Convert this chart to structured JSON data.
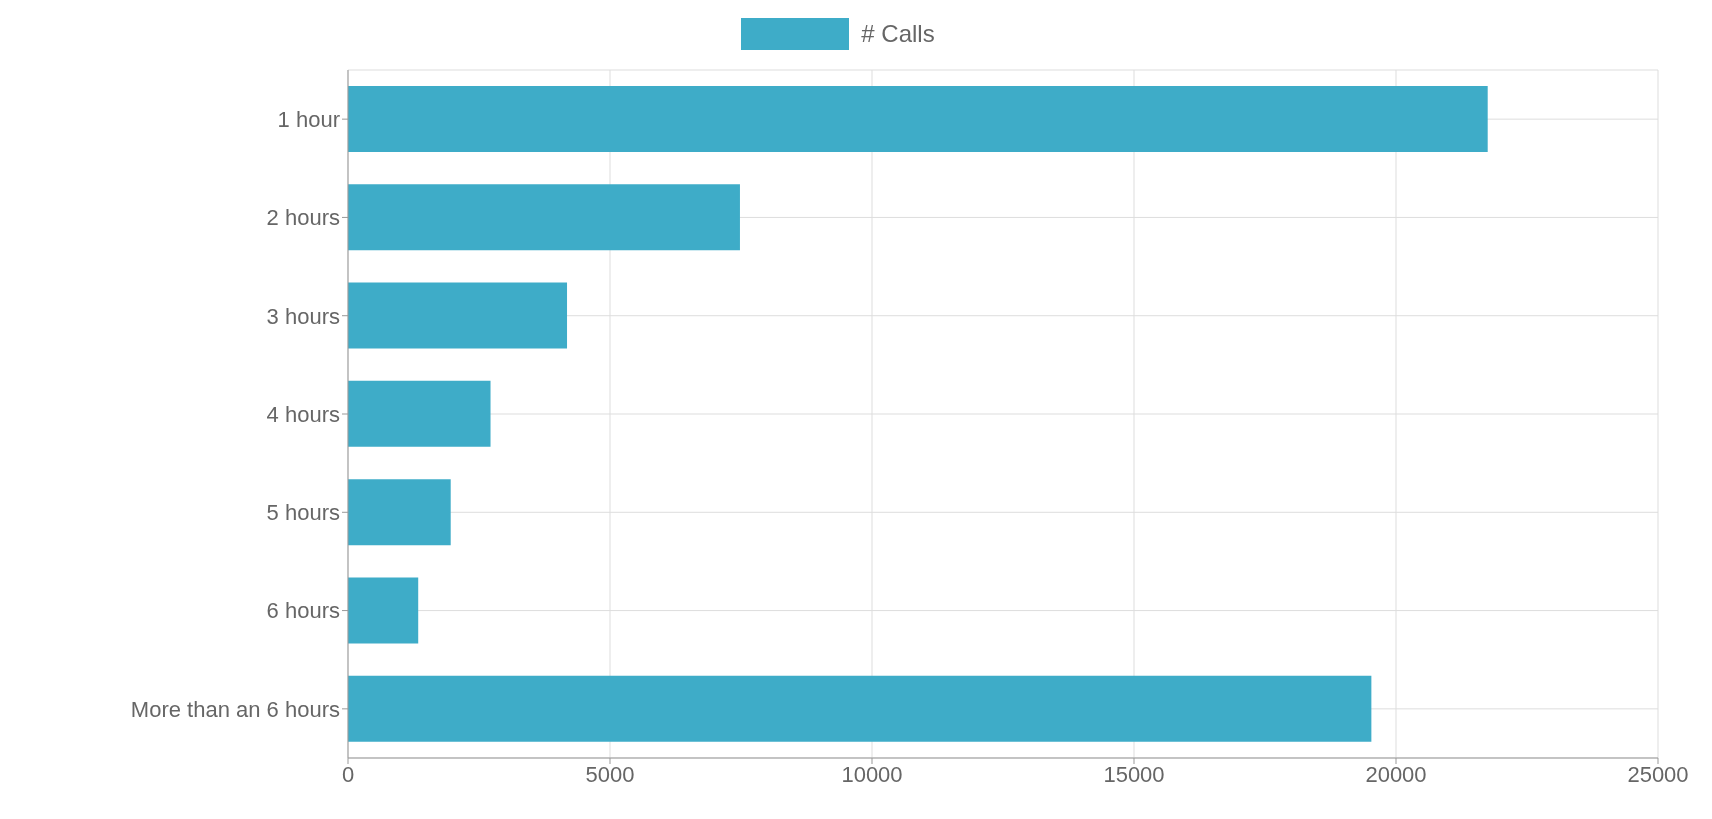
{
  "chart_data": {
    "type": "bar",
    "orientation": "horizontal",
    "categories": [
      "1 hour",
      "2 hours",
      "3 hours",
      "4 hours",
      "5 hours",
      "6 hours",
      "More than an 6 hours"
    ],
    "series": [
      {
        "name": "# Calls",
        "color": "#3eacc8",
        "values": [
          21750,
          7480,
          4180,
          2720,
          1960,
          1340,
          19530
        ]
      }
    ],
    "xlim": [
      0,
      25000
    ],
    "xticks": [
      0,
      5000,
      10000,
      15000,
      20000,
      25000
    ],
    "grid": true,
    "legend": "top"
  }
}
